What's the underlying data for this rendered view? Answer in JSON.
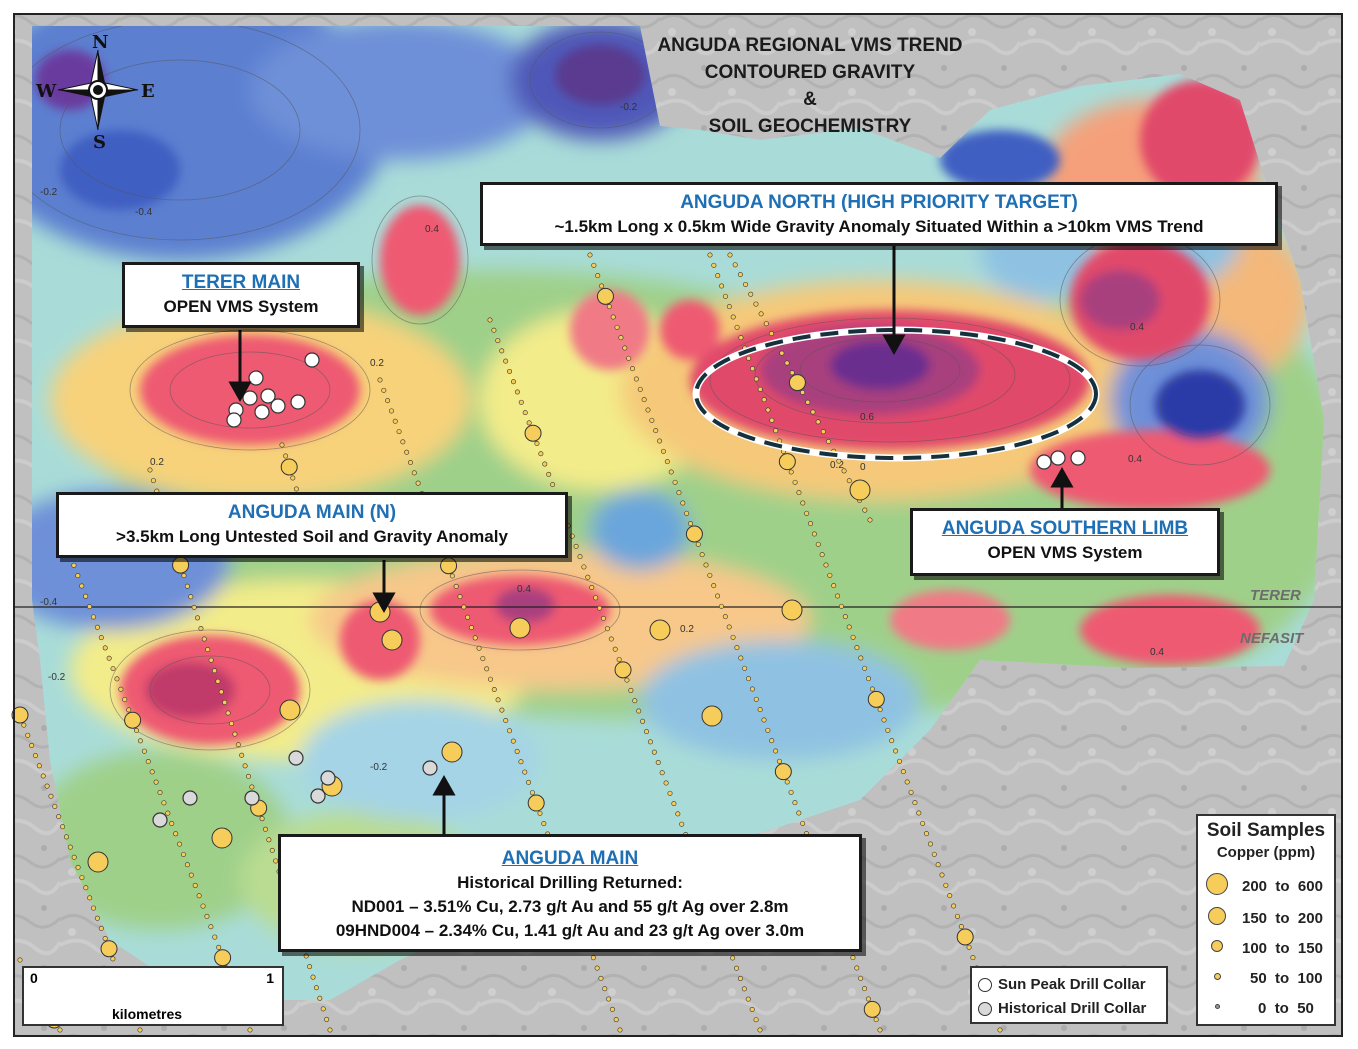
{
  "title": {
    "line1": "ANGUDA REGIONAL VMS TREND",
    "line2": "CONTOURED GRAVITY",
    "line3": "&",
    "line4": "SOIL GEOCHEMISTRY"
  },
  "compass": {
    "n": "N",
    "s": "S",
    "e": "E",
    "w": "W"
  },
  "callouts": {
    "anguda_north": {
      "heading": "ANGUDA NORTH (HIGH PRIORITY TARGET)",
      "text": "~1.5km Long x 0.5km Wide Gravity Anomaly Situated Within a >10km VMS Trend"
    },
    "terer_main": {
      "heading": "TERER MAIN",
      "text": "OPEN VMS System"
    },
    "anguda_main_n": {
      "heading": "ANGUDA MAIN (N)",
      "text": ">3.5km Long Untested Soil and Gravity Anomaly"
    },
    "anguda_southern_limb": {
      "heading": "ANGUDA SOUTHERN LIMB",
      "text": "OPEN VMS System"
    },
    "anguda_main": {
      "heading": "ANGUDA MAIN",
      "line1": "Historical Drilling Returned:",
      "line2": "ND001 – 3.51% Cu, 2.73 g/t Au and 55 g/t Ag over 2.8m",
      "line3": "09HND004 – 2.34% Cu, 1.41 g/t Au and 23 g/t Ag over 3.0m"
    }
  },
  "region_labels": {
    "north": "TERER",
    "south": "NEFASIT"
  },
  "contour_labels": [
    "-0.2",
    "-0.4",
    "0",
    "0.2",
    "0.4",
    "0.6"
  ],
  "soil_legend": {
    "title": "Soil Samples",
    "subtitle": "Copper (ppm)",
    "classes": [
      {
        "from": "200",
        "to_word": "to",
        "to": "600"
      },
      {
        "from": "150",
        "to_word": "to",
        "to": "200"
      },
      {
        "from": "100",
        "to_word": "to",
        "to": "150"
      },
      {
        "from": "50",
        "to_word": "to",
        "to": "100"
      },
      {
        "from": "0",
        "to_word": "to",
        "to": "50"
      }
    ]
  },
  "collar_legend": {
    "sun_peak": "Sun Peak Drill Collar",
    "historical": "Historical Drill Collar"
  },
  "scale_bar": {
    "start": "0",
    "end": "1",
    "unit": "kilometres"
  },
  "colors": {
    "sun_peak_collar": "#ffffff",
    "historical_collar": "#d9d9d9",
    "soil_sample": "#f6cd5a",
    "callout_heading": "#1f6fb5",
    "gravity_high": "#6b2f8f",
    "gravity_low": "#2a3aa8"
  }
}
